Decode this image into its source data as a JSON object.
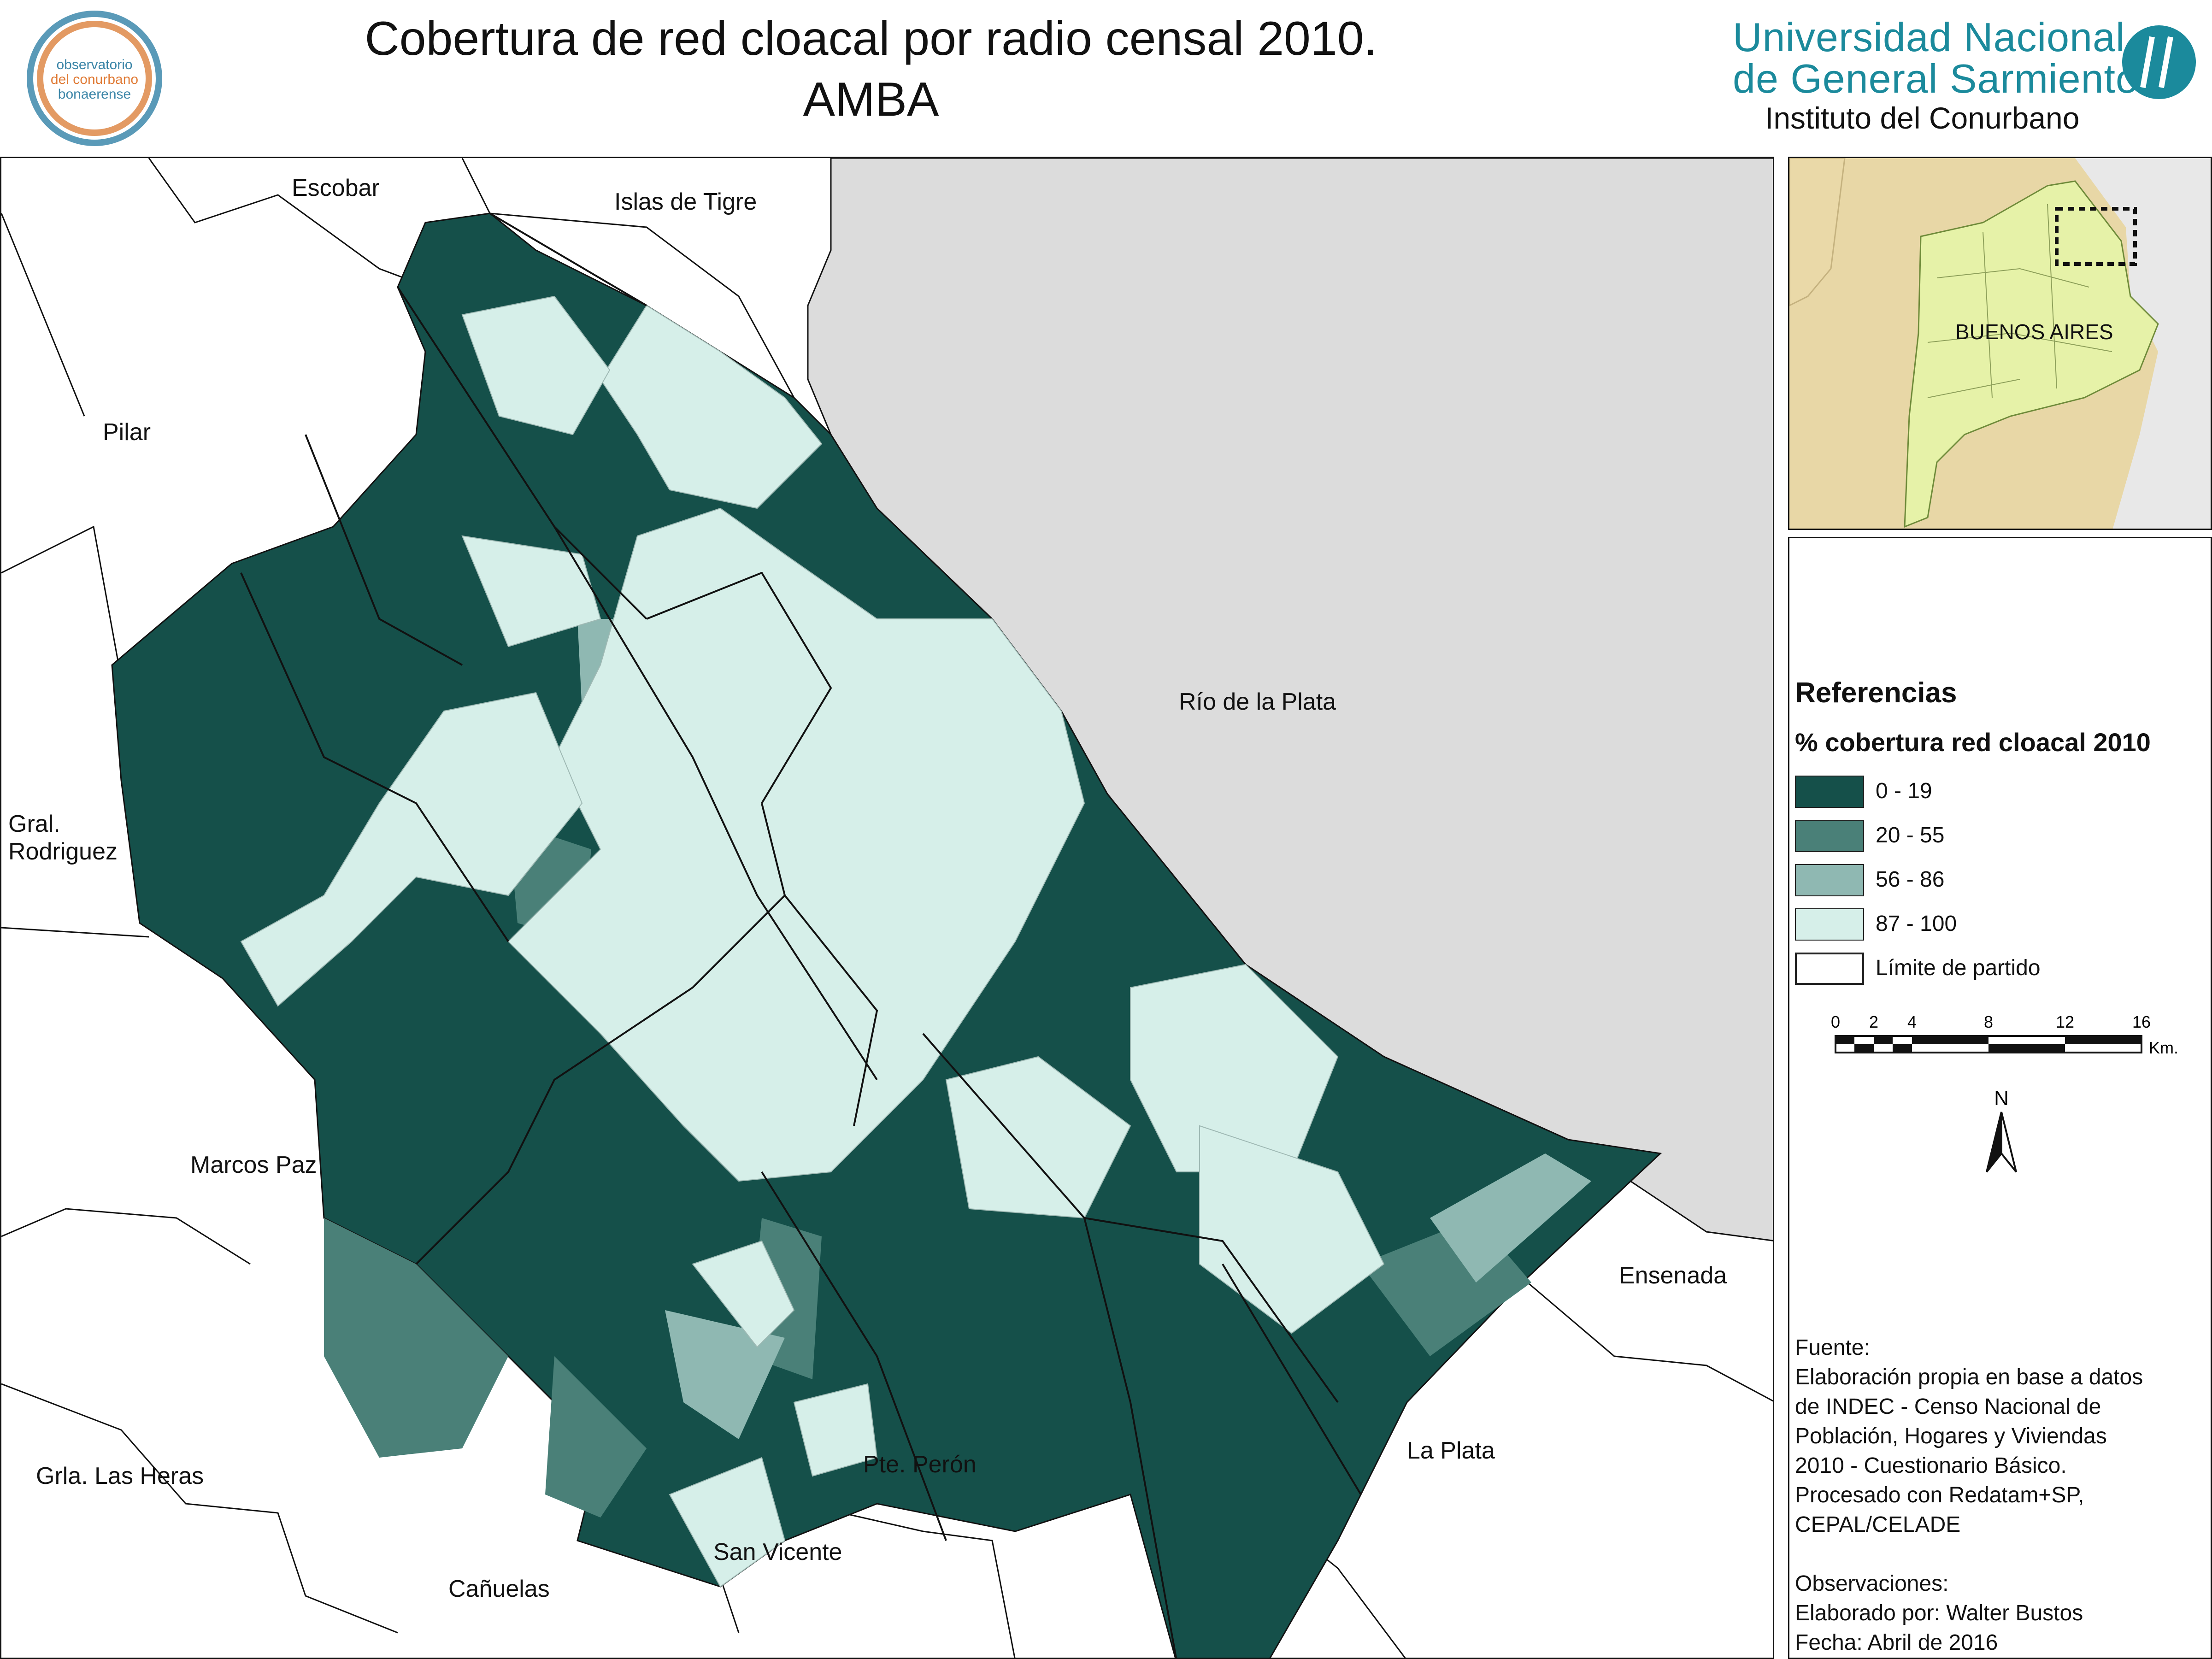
{
  "title": {
    "line1": "Cobertura de red cloacal por radio censal 2010.",
    "line2": "AMBA"
  },
  "logo_observatorio": {
    "line1": "observatorio",
    "line2": "del conurbano",
    "line3": "bonaerense"
  },
  "logo_ungs": {
    "line1": "Universidad  Nacional",
    "line2": "de General Sarmiento",
    "line3": "Instituto del Conurbano"
  },
  "map": {
    "labels": {
      "escobar": "Escobar",
      "islas_tigre": "Islas de Tigre",
      "pilar": "Pilar",
      "gral_rodriguez_1": "Gral.",
      "gral_rodriguez_2": "Rodriguez",
      "rio_plata": "Río de la Plata",
      "marcos_paz": "Marcos Paz",
      "ensenada": "Ensenada",
      "la_plata": "La Plata",
      "grla_las_heras": "Grla. Las Heras",
      "pte_peron": "Pte. Perón",
      "san_vicente": "San Vicente",
      "canuelas": "Cañuelas"
    },
    "colors": {
      "water": "#dcdcdc",
      "c0_19": "#15504a",
      "c20_55": "#4a8078",
      "c56_86": "#8fb8b2",
      "c87_100": "#d6efe9"
    }
  },
  "inset": {
    "label": "BUENOS AIRES",
    "colors": {
      "land": "#e8d7a6",
      "province": "#e6f2a8",
      "water": "#e8e8e8"
    }
  },
  "legend": {
    "title": "Referencias",
    "subtitle": "% cobertura red cloacal 2010",
    "items": [
      {
        "label": "0 - 19",
        "color": "#15504a"
      },
      {
        "label": "20 - 55",
        "color": "#4a8078"
      },
      {
        "label": "56 - 86",
        "color": "#8fb8b2"
      },
      {
        "label": "87 - 100",
        "color": "#d6efe9"
      },
      {
        "label": "Límite de partido",
        "color": "#ffffff"
      }
    ],
    "scale": {
      "ticks": [
        "0",
        "2",
        "4",
        "8",
        "12",
        "16"
      ],
      "unit": "Km."
    },
    "north": "N"
  },
  "source": {
    "heading": "Fuente:",
    "lines": [
      "Elaboración propia en base a datos",
      "de INDEC - Censo Nacional de",
      "Población, Hogares y Viviendas",
      "2010 - Cuestionario Básico.",
      "Procesado con Redatam+SP,",
      "CEPAL/CELADE"
    ],
    "obs_heading": "Observaciones:",
    "author": "Elaborado por: Walter Bustos",
    "date": "Fecha: Abril de 2016"
  }
}
